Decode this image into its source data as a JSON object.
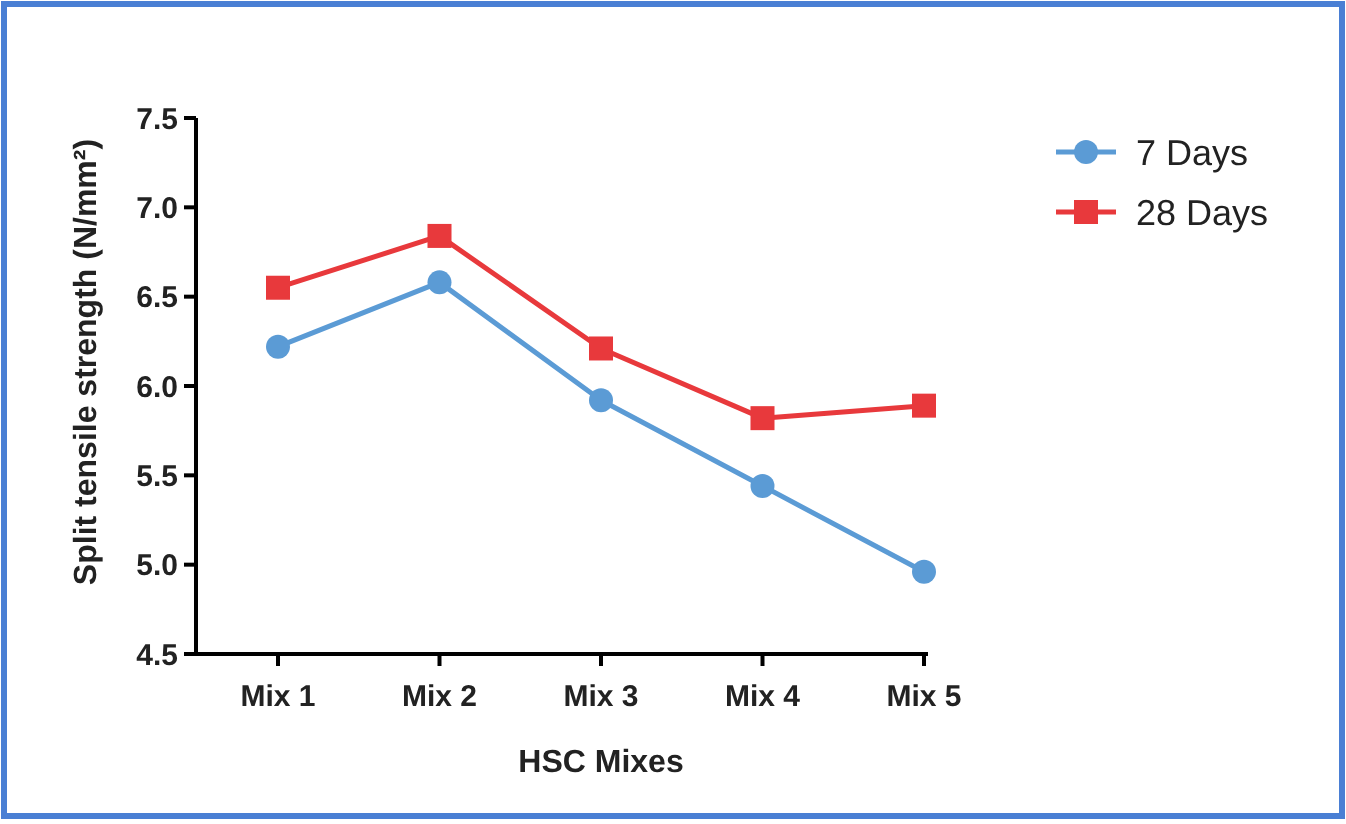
{
  "chart_data": {
    "type": "line",
    "xlabel": "HSC Mixes",
    "ylabel": "Split tensile strength (N/mm²)",
    "categories": [
      "Mix 1",
      "Mix 2",
      "Mix 3",
      "Mix 4",
      "Mix 5"
    ],
    "series": [
      {
        "name": "7 Days",
        "color": "#5b9bd5",
        "marker": "circle",
        "values": [
          6.22,
          6.58,
          5.92,
          5.44,
          4.96
        ]
      },
      {
        "name": "28 Days",
        "color": "#e8393c",
        "marker": "square",
        "values": [
          6.55,
          6.84,
          6.21,
          5.82,
          5.89
        ]
      }
    ],
    "ylim": [
      4.5,
      7.5
    ],
    "yticks": [
      {
        "value": 4.5,
        "label": "4.5"
      },
      {
        "value": 5,
        "label": "5.0"
      },
      {
        "value": 5.5,
        "label": "5.5"
      },
      {
        "value": 6,
        "label": "6.0"
      },
      {
        "value": 6.5,
        "label": "6.5"
      },
      {
        "value": 7,
        "label": "7.0"
      },
      {
        "value": 7.5,
        "label": "7.5"
      }
    ],
    "grid": false,
    "legend": "top right",
    "line_style": "solid"
  }
}
